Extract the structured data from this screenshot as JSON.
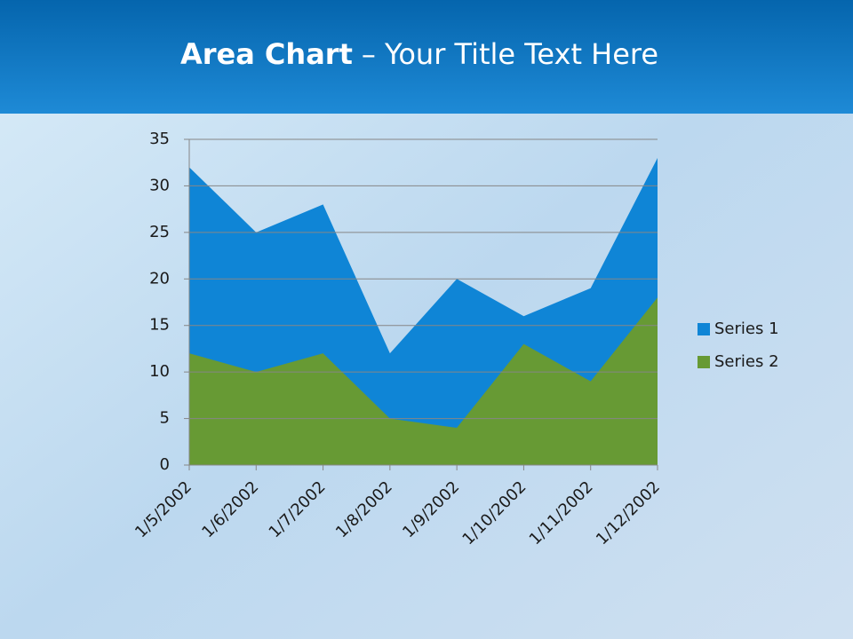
{
  "chart_data": {
    "type": "area",
    "title": [
      "Area Chart",
      "– Your Title Text Here"
    ],
    "categories": [
      "1/5/2002",
      "1/6/2002",
      "1/7/2002",
      "1/8/2002",
      "1/9/2002",
      "1/10/2002",
      "1/11/2002",
      "1/12/2002"
    ],
    "series": [
      {
        "name": "Series 1",
        "color": "#0f85d6",
        "values": [
          32,
          25,
          28,
          12,
          20,
          16,
          19,
          33
        ]
      },
      {
        "name": "Series 2",
        "color": "#679a34",
        "values": [
          12,
          10,
          12,
          5,
          4,
          13,
          9,
          18
        ]
      }
    ],
    "ylim": [
      0,
      35
    ],
    "yticks": [
      0,
      5,
      10,
      15,
      20,
      25,
      30,
      35
    ],
    "grid": true,
    "legend": "right"
  }
}
